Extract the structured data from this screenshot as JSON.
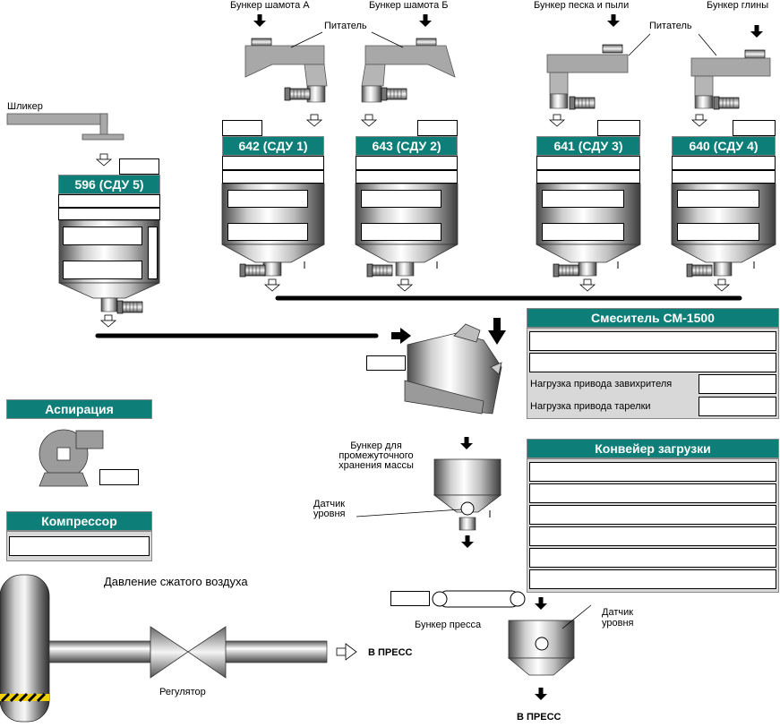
{
  "feeders": {
    "bunker_chamotte_a": "Бункер шамота А",
    "bunker_chamotte_b": "Бункер шамота Б",
    "bunker_sand_dust": "Бункер песка и пыли",
    "bunker_clay": "Бункер глины",
    "feeder_label_1": "Питатель",
    "feeder_label_2": "Питатель",
    "slip": "Шликер"
  },
  "dosers": [
    {
      "label": "596 (СДУ 5)"
    },
    {
      "label": "642 (СДУ 1)"
    },
    {
      "label": "643 (СДУ 2)"
    },
    {
      "label": "641 (СДУ 3)"
    },
    {
      "label": "640 (СДУ 4)"
    }
  ],
  "mixer": {
    "title": "Смеситель СМ-1500",
    "rows": [
      {
        "label": ""
      },
      {
        "label": ""
      },
      {
        "label": "Нагрузка привода завихрителя"
      },
      {
        "label": "Нагрузка привода тарелки"
      }
    ]
  },
  "aspiration": {
    "title": "Аспирация"
  },
  "compressor": {
    "title": "Компрессор"
  },
  "air": {
    "pressure_label": "Давление сжатого воздуха",
    "regulator_label": "Регулятор",
    "to_press_1": "В ПРЕСС"
  },
  "intermediate": {
    "bunker_label_l1": "Бункер для",
    "bunker_label_l2": "промежуточного",
    "bunker_label_l3": "хранения массы",
    "level_sensor_l1": "Датчик",
    "level_sensor_l2": "уровня"
  },
  "conveyor": {
    "title": "Конвейер загрузки",
    "rows": 6
  },
  "press": {
    "bunker_label": "Бункер пресса",
    "level_sensor_l1": "Датчик",
    "level_sensor_l2": "уровня",
    "to_press_2": "В ПРЕСС"
  },
  "colors": {
    "header": "#0e7f78",
    "tank_dark": "#505050",
    "tank_light": "#f0f0f0",
    "panel_bg": "#d8d8d8"
  }
}
